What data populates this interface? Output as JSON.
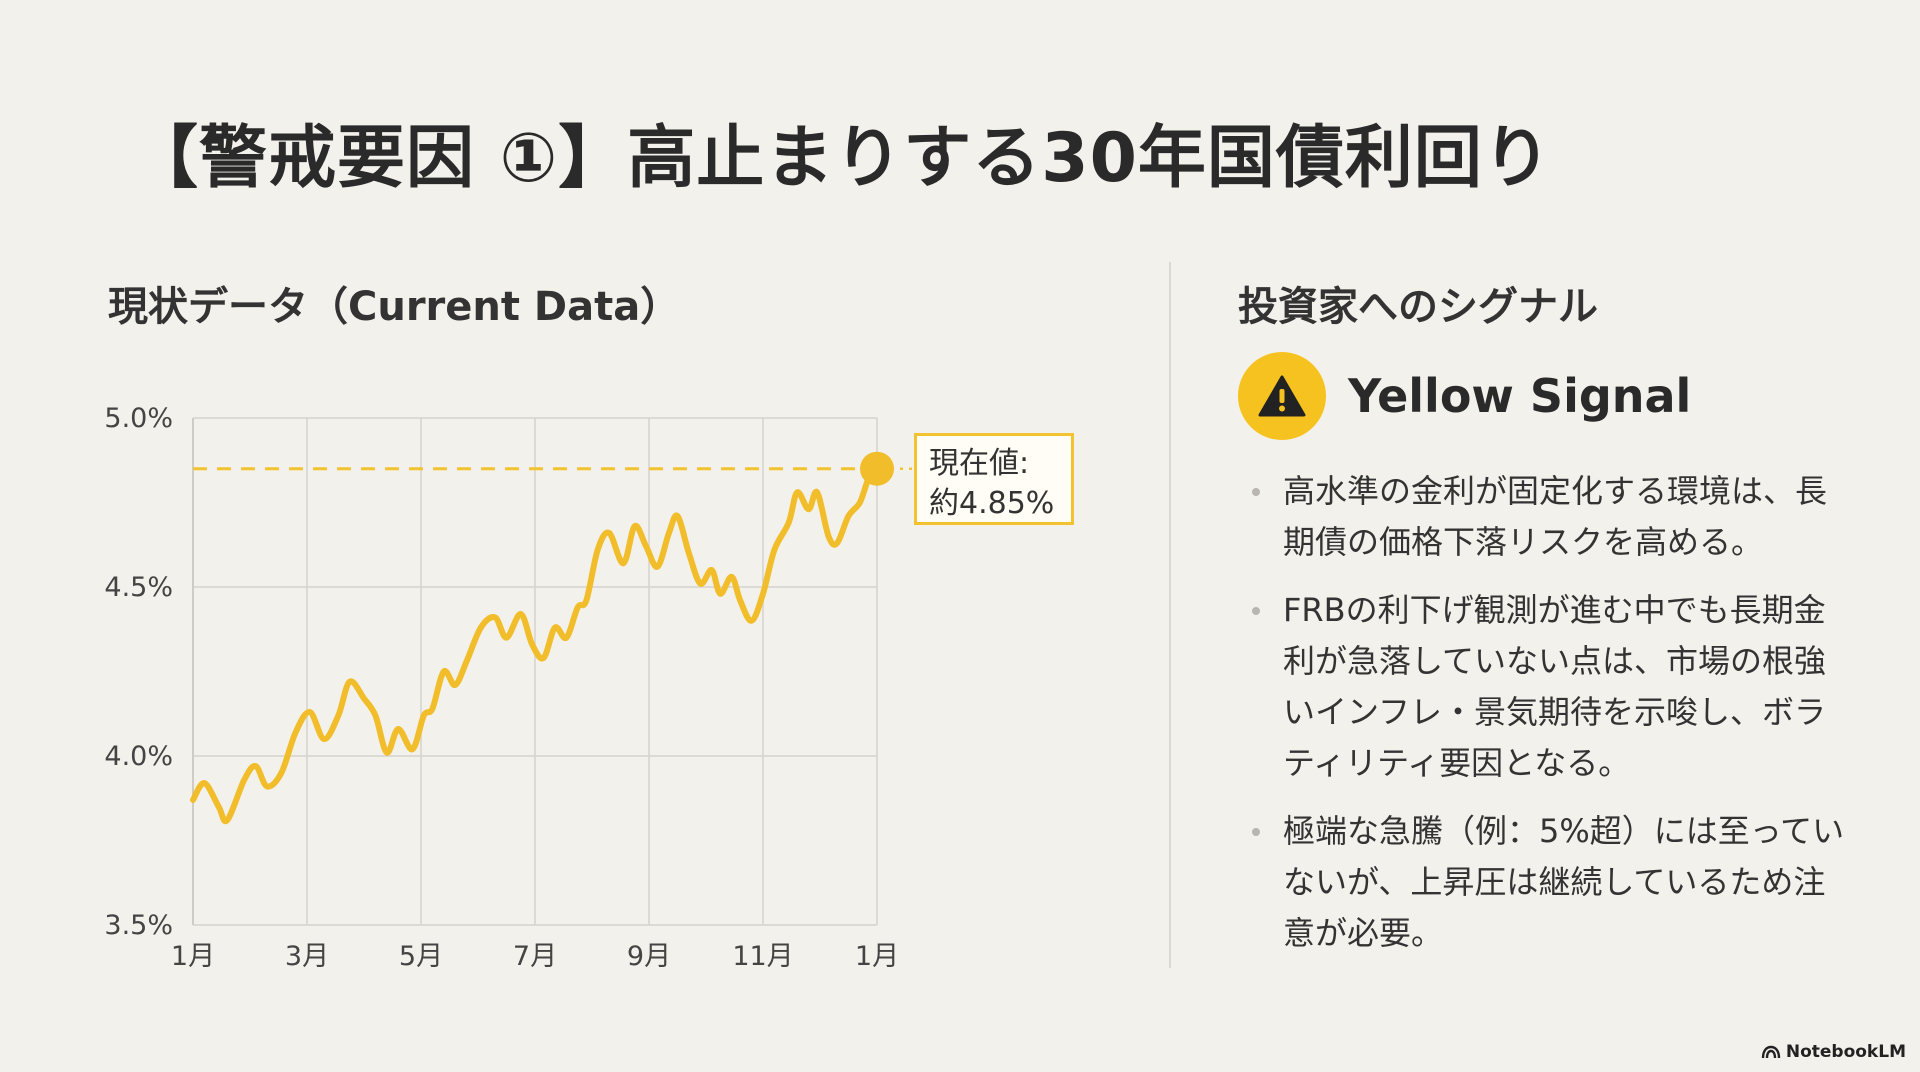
{
  "title": "【警戒要因 ①】高止まりする30年国債利回り",
  "left_heading": "現状データ（Current Data）",
  "right_heading": "投資家へのシグナル",
  "callout": {
    "line1": "現在値:",
    "line2": "約4.85%"
  },
  "signal": {
    "label": "Yellow Signal",
    "icon": "warning-icon",
    "color": "#f6c21f"
  },
  "bullets": [
    "高水準の金利が固定化する環境は、長期債の価格下落リスクを高める。",
    "FRBの利下げ観測が進む中でも長期金利が急落していない点は、市場の根強いインフレ・景気期待を示唆し、ボラティリティ要因となる。",
    "極端な急騰（例：5%超）には至っていないが、上昇圧は継続しているため注意が必要。"
  ],
  "watermark": "NotebookLM",
  "chart_data": {
    "type": "line",
    "title": "",
    "xlabel": "",
    "ylabel": "",
    "x_ticks": [
      "1月",
      "3月",
      "5月",
      "7月",
      "9月",
      "11月",
      "1月"
    ],
    "y_ticks": [
      "3.5%",
      "4.0%",
      "4.5%",
      "5.0%"
    ],
    "ylim": [
      3.5,
      5.0
    ],
    "xlim": [
      0,
      12
    ],
    "grid": true,
    "line_color": "#f2bd2a",
    "reference_line": {
      "value": 4.85,
      "style": "dashed"
    },
    "current_point": {
      "x": 12,
      "y": 4.85
    },
    "series": [
      {
        "x": [
          0,
          0.2,
          0.45,
          0.6,
          0.9,
          1.1,
          1.3,
          1.55,
          1.8,
          2.05,
          2.3,
          2.55,
          2.75,
          3.0,
          3.2,
          3.4,
          3.6,
          3.85,
          4.05,
          4.2,
          4.4,
          4.6,
          4.8,
          5.05,
          5.3,
          5.5,
          5.75,
          5.95,
          6.15,
          6.35,
          6.55,
          6.75,
          6.9,
          7.1,
          7.3,
          7.55,
          7.75,
          7.95,
          8.15,
          8.35,
          8.5,
          8.7,
          8.9,
          9.1,
          9.25,
          9.45,
          9.6,
          9.8,
          10.0,
          10.2,
          10.45,
          10.6,
          10.8,
          10.95,
          11.15,
          11.3,
          11.5,
          11.7,
          11.85,
          12.0
        ],
        "y": [
          3.87,
          3.92,
          3.85,
          3.81,
          3.93,
          3.97,
          3.91,
          3.95,
          4.07,
          4.13,
          4.05,
          4.12,
          4.22,
          4.17,
          4.12,
          4.01,
          4.08,
          4.02,
          4.12,
          4.14,
          4.25,
          4.21,
          4.28,
          4.38,
          4.41,
          4.35,
          4.42,
          4.33,
          4.29,
          4.38,
          4.35,
          4.44,
          4.46,
          4.61,
          4.66,
          4.57,
          4.68,
          4.62,
          4.56,
          4.66,
          4.71,
          4.6,
          4.51,
          4.55,
          4.48,
          4.53,
          4.46,
          4.4,
          4.48,
          4.61,
          4.69,
          4.78,
          4.73,
          4.78,
          4.65,
          4.63,
          4.71,
          4.75,
          4.82,
          4.85
        ]
      }
    ]
  }
}
